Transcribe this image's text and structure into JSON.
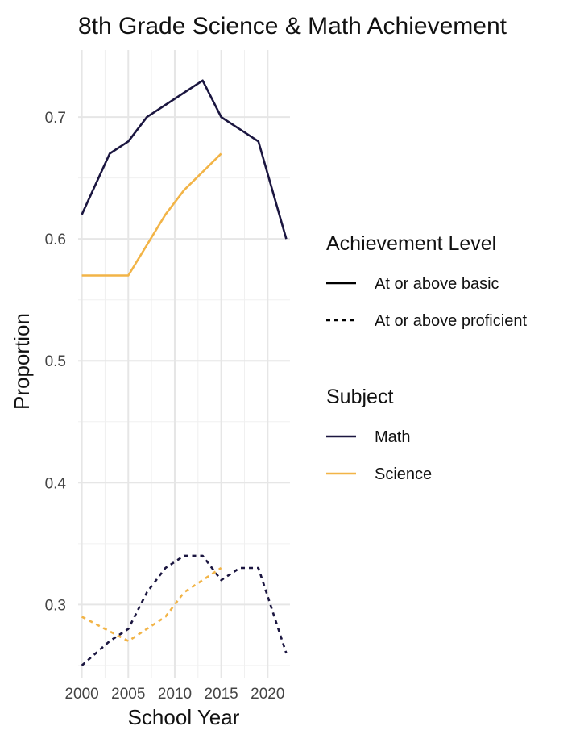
{
  "chart_data": {
    "type": "line",
    "title": "8th Grade Science & Math Achievement",
    "xlabel": "School Year",
    "ylabel": "Proportion",
    "xlim": [
      1999.6,
      2022.4
    ],
    "ylim": [
      0.24,
      0.755
    ],
    "x_ticks": [
      2000,
      2005,
      2010,
      2015,
      2020
    ],
    "y_ticks": [
      0.3,
      0.4,
      0.5,
      0.6,
      0.7
    ],
    "grid": true,
    "legend_position": "right",
    "legend": [
      {
        "title": "Achievement Level",
        "items": [
          {
            "label": "At or above basic",
            "dash": "solid"
          },
          {
            "label": "At or above proficient",
            "dash": "dashed"
          }
        ]
      },
      {
        "title": "Subject",
        "items": [
          {
            "label": "Math",
            "color": "#1b1640"
          },
          {
            "label": "Science",
            "color": "#f2b447"
          }
        ]
      }
    ],
    "series": [
      {
        "subject": "Math",
        "level": "At or above basic",
        "color": "#1b1640",
        "dash": "solid",
        "x": [
          2000,
          2003,
          2005,
          2007,
          2009,
          2011,
          2013,
          2015,
          2017,
          2019,
          2022
        ],
        "y": [
          0.62,
          0.67,
          0.68,
          0.7,
          0.71,
          0.72,
          0.73,
          0.7,
          0.69,
          0.68,
          0.6
        ]
      },
      {
        "subject": "Math",
        "level": "At or above proficient",
        "color": "#1b1640",
        "dash": "dashed",
        "x": [
          2000,
          2003,
          2005,
          2007,
          2009,
          2011,
          2013,
          2015,
          2017,
          2019,
          2022
        ],
        "y": [
          0.25,
          0.27,
          0.28,
          0.31,
          0.33,
          0.34,
          0.34,
          0.32,
          0.33,
          0.33,
          0.26
        ]
      },
      {
        "subject": "Science",
        "level": "At or above basic",
        "color": "#f2b447",
        "dash": "solid",
        "x": [
          2000,
          2005,
          2009,
          2011,
          2015
        ],
        "y": [
          0.57,
          0.57,
          0.62,
          0.64,
          0.67
        ]
      },
      {
        "subject": "Science",
        "level": "At or above proficient",
        "color": "#f2b447",
        "dash": "dashed",
        "x": [
          2000,
          2005,
          2009,
          2011,
          2015
        ],
        "y": [
          0.29,
          0.27,
          0.29,
          0.31,
          0.33
        ]
      }
    ]
  }
}
